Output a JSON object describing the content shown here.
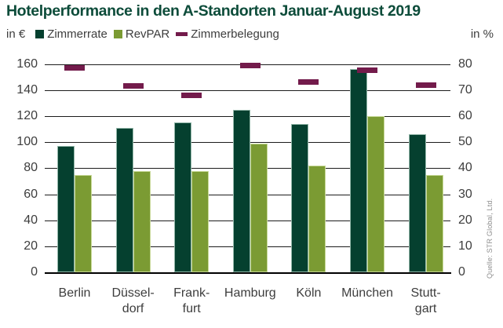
{
  "title": "Hotelperformance in den A-Standorten Januar-August 2019",
  "source": "Quelle: STR Global, Ltd.",
  "colors": {
    "title": "#0d4c3a",
    "zimmerrate_bar": "#05402f",
    "revpar_bar": "#7b9b33",
    "zimmerbelegung_dash": "#731b4b",
    "axis_text": "#3d3d3d",
    "gridline": "#1c1c1c",
    "source_text": "#8f8f8f"
  },
  "legend": {
    "items": [
      {
        "label": "Zimmerrate",
        "marker": "square",
        "color": "#05402f"
      },
      {
        "label": "RevPAR",
        "marker": "square",
        "color": "#7b9b33"
      },
      {
        "label": "Zimmerbelegung",
        "marker": "dash",
        "color": "#731b4b"
      }
    ]
  },
  "chart_data": {
    "type": "bar",
    "title": "Hotelperformance in den A-Standorten Januar-August 2019",
    "categories": [
      "Berlin",
      "Düsseldorf",
      "Frankfurt",
      "Hamburg",
      "Köln",
      "München",
      "Stuttgart"
    ],
    "categories_display": [
      [
        "Berlin"
      ],
      [
        "Düssel-",
        "dorf"
      ],
      [
        "Frank-",
        "furt"
      ],
      [
        "Hamburg"
      ],
      [
        "Köln"
      ],
      [
        "München"
      ],
      [
        "Stutt-",
        "gart"
      ]
    ],
    "series": [
      {
        "name": "Zimmerrate",
        "type": "bar",
        "axis": "left",
        "unit": "€",
        "color": "#05402f",
        "values": [
          97,
          111,
          115,
          125,
          114,
          156,
          106
        ]
      },
      {
        "name": "RevPAR",
        "type": "bar",
        "axis": "left",
        "unit": "€",
        "color": "#7b9b33",
        "values": [
          75,
          78,
          78,
          99,
          82,
          120,
          75
        ]
      },
      {
        "name": "Zimmerbelegung",
        "type": "dash",
        "axis": "right",
        "unit": "%",
        "color": "#731b4b",
        "values": [
          78.5,
          71.5,
          68,
          79.5,
          73,
          77.5,
          72
        ]
      }
    ],
    "left_axis": {
      "label": "in €",
      "min": 0,
      "max": 160,
      "step": 20,
      "ticks": [
        160,
        140,
        120,
        100,
        80,
        60,
        40,
        20,
        0
      ]
    },
    "right_axis": {
      "label": "in %",
      "min": 0,
      "max": 80,
      "step": 10,
      "ticks": [
        80,
        70,
        60,
        50,
        40,
        30,
        20,
        10,
        0
      ]
    },
    "grid": true,
    "legend_position": "top"
  }
}
